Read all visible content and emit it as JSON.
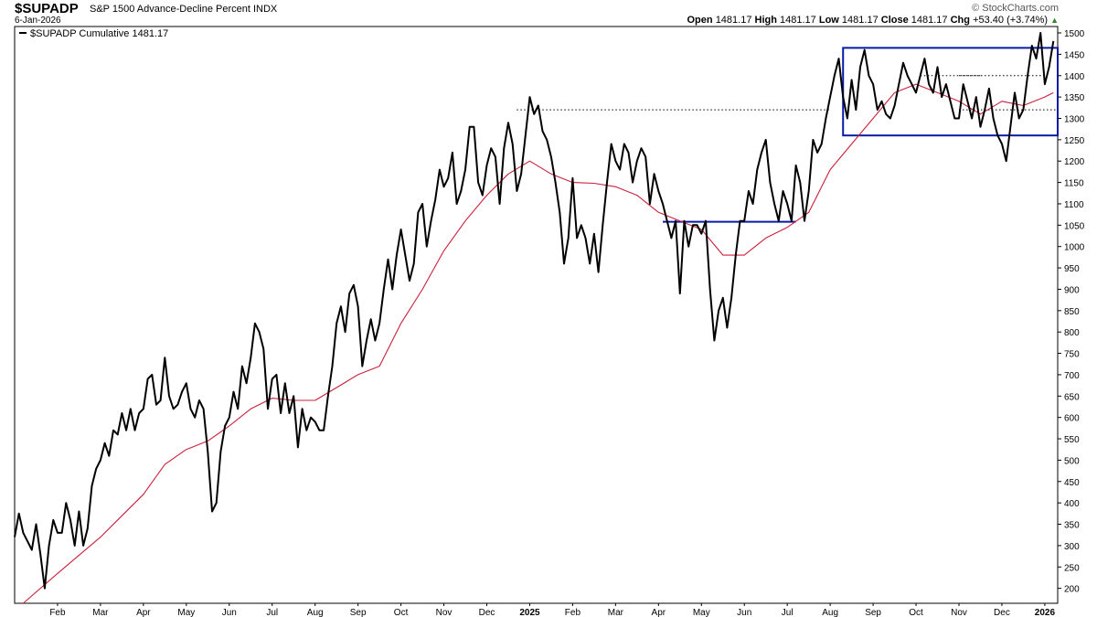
{
  "header": {
    "symbol": "$SUPADP",
    "description": "S&P 1500 Advance-Decline Percent INDX",
    "date": "6-Jan-2026",
    "source": "© StockCharts.com",
    "open_label": "Open",
    "open": "1481.17",
    "high_label": "High",
    "high": "1481.17",
    "low_label": "Low",
    "low": "1481.17",
    "close_label": "Close",
    "close": "1481.17",
    "chg_label": "Chg",
    "chg": "+53.40 (+3.74%)",
    "chg_arrow": "▲"
  },
  "chart_data": {
    "type": "line",
    "legend": "$SUPADP Cumulative 1481.17",
    "xlabels": [
      "Feb",
      "Mar",
      "Apr",
      "May",
      "Jun",
      "Jul",
      "Aug",
      "Sep",
      "Oct",
      "Nov",
      "Dec",
      "2025",
      "Feb",
      "Mar",
      "Apr",
      "May",
      "Jun",
      "Jul",
      "Aug",
      "Sep",
      "Oct",
      "Nov",
      "Dec",
      "2026"
    ],
    "xlabels_bold": [
      "2025",
      "2026"
    ],
    "yticks": [
      200,
      250,
      300,
      350,
      400,
      450,
      500,
      550,
      600,
      650,
      700,
      750,
      800,
      850,
      900,
      950,
      1000,
      1050,
      1100,
      1150,
      1200,
      1250,
      1300,
      1350,
      1400,
      1450,
      1500
    ],
    "ylim": [
      165,
      1515
    ],
    "xlim": [
      0,
      24.3
    ],
    "series": [
      {
        "name": "$SUPADP Cumulative",
        "color": "#000000",
        "points": [
          [
            0,
            320
          ],
          [
            0.1,
            375
          ],
          [
            0.2,
            330
          ],
          [
            0.3,
            310
          ],
          [
            0.4,
            290
          ],
          [
            0.5,
            350
          ],
          [
            0.6,
            280
          ],
          [
            0.7,
            200
          ],
          [
            0.8,
            300
          ],
          [
            0.9,
            360
          ],
          [
            1.0,
            330
          ],
          [
            1.1,
            330
          ],
          [
            1.2,
            400
          ],
          [
            1.3,
            360
          ],
          [
            1.4,
            300
          ],
          [
            1.5,
            380
          ],
          [
            1.6,
            300
          ],
          [
            1.7,
            340
          ],
          [
            1.8,
            440
          ],
          [
            1.9,
            480
          ],
          [
            2.0,
            500
          ],
          [
            2.1,
            540
          ],
          [
            2.2,
            510
          ],
          [
            2.3,
            570
          ],
          [
            2.4,
            560
          ],
          [
            2.5,
            610
          ],
          [
            2.6,
            570
          ],
          [
            2.7,
            620
          ],
          [
            2.8,
            570
          ],
          [
            2.9,
            610
          ],
          [
            3.0,
            620
          ],
          [
            3.1,
            690
          ],
          [
            3.2,
            700
          ],
          [
            3.3,
            630
          ],
          [
            3.4,
            640
          ],
          [
            3.5,
            740
          ],
          [
            3.6,
            650
          ],
          [
            3.7,
            620
          ],
          [
            3.8,
            630
          ],
          [
            3.9,
            660
          ],
          [
            4.0,
            680
          ],
          [
            4.1,
            620
          ],
          [
            4.2,
            600
          ],
          [
            4.3,
            640
          ],
          [
            4.4,
            620
          ],
          [
            4.5,
            520
          ],
          [
            4.6,
            380
          ],
          [
            4.7,
            400
          ],
          [
            4.8,
            520
          ],
          [
            4.9,
            580
          ],
          [
            5.0,
            600
          ],
          [
            5.1,
            660
          ],
          [
            5.2,
            620
          ],
          [
            5.3,
            720
          ],
          [
            5.4,
            680
          ],
          [
            5.5,
            740
          ],
          [
            5.6,
            820
          ],
          [
            5.7,
            800
          ],
          [
            5.8,
            760
          ],
          [
            5.9,
            620
          ],
          [
            6.0,
            690
          ],
          [
            6.1,
            700
          ],
          [
            6.2,
            610
          ],
          [
            6.3,
            680
          ],
          [
            6.4,
            610
          ],
          [
            6.5,
            650
          ],
          [
            6.6,
            530
          ],
          [
            6.7,
            620
          ],
          [
            6.8,
            570
          ],
          [
            6.9,
            600
          ],
          [
            7.0,
            590
          ],
          [
            7.1,
            570
          ],
          [
            7.2,
            570
          ],
          [
            7.3,
            650
          ],
          [
            7.4,
            720
          ],
          [
            7.5,
            820
          ],
          [
            7.6,
            860
          ],
          [
            7.7,
            800
          ],
          [
            7.8,
            890
          ],
          [
            7.9,
            910
          ],
          [
            8.0,
            860
          ],
          [
            8.1,
            720
          ],
          [
            8.2,
            780
          ],
          [
            8.3,
            830
          ],
          [
            8.4,
            780
          ],
          [
            8.5,
            820
          ],
          [
            8.6,
            900
          ],
          [
            8.7,
            970
          ],
          [
            8.8,
            900
          ],
          [
            8.9,
            980
          ],
          [
            9.0,
            1040
          ],
          [
            9.1,
            980
          ],
          [
            9.2,
            920
          ],
          [
            9.3,
            960
          ],
          [
            9.4,
            1080
          ],
          [
            9.5,
            1100
          ],
          [
            9.6,
            1000
          ],
          [
            9.7,
            1060
          ],
          [
            9.8,
            1110
          ],
          [
            9.9,
            1180
          ],
          [
            10.0,
            1140
          ],
          [
            10.1,
            1160
          ],
          [
            10.2,
            1220
          ],
          [
            10.3,
            1100
          ],
          [
            10.4,
            1130
          ],
          [
            10.5,
            1180
          ],
          [
            10.6,
            1280
          ],
          [
            10.7,
            1280
          ],
          [
            10.8,
            1150
          ],
          [
            10.9,
            1120
          ],
          [
            11.0,
            1190
          ],
          [
            11.1,
            1230
          ],
          [
            11.2,
            1210
          ],
          [
            11.3,
            1100
          ],
          [
            11.4,
            1230
          ],
          [
            11.5,
            1290
          ],
          [
            11.6,
            1240
          ],
          [
            11.7,
            1130
          ],
          [
            11.8,
            1170
          ],
          [
            11.9,
            1260
          ],
          [
            12.0,
            1350
          ],
          [
            12.1,
            1310
          ],
          [
            12.2,
            1330
          ],
          [
            12.3,
            1270
          ],
          [
            12.4,
            1250
          ],
          [
            12.5,
            1210
          ],
          [
            12.6,
            1150
          ],
          [
            12.7,
            1080
          ],
          [
            12.8,
            960
          ],
          [
            12.9,
            1020
          ],
          [
            13.0,
            1160
          ],
          [
            13.1,
            1020
          ],
          [
            13.2,
            1050
          ],
          [
            13.3,
            1020
          ],
          [
            13.4,
            960
          ],
          [
            13.5,
            1030
          ],
          [
            13.6,
            940
          ],
          [
            13.7,
            1050
          ],
          [
            13.8,
            1150
          ],
          [
            13.9,
            1240
          ],
          [
            14.0,
            1200
          ],
          [
            14.1,
            1180
          ],
          [
            14.2,
            1240
          ],
          [
            14.3,
            1220
          ],
          [
            14.4,
            1150
          ],
          [
            14.5,
            1200
          ],
          [
            14.6,
            1230
          ],
          [
            14.7,
            1210
          ],
          [
            14.8,
            1100
          ],
          [
            14.9,
            1170
          ],
          [
            15.0,
            1130
          ],
          [
            15.1,
            1100
          ],
          [
            15.2,
            1060
          ],
          [
            15.3,
            1020
          ],
          [
            15.4,
            1060
          ],
          [
            15.5,
            890
          ],
          [
            15.6,
            1060
          ],
          [
            15.7,
            1000
          ],
          [
            15.8,
            1050
          ],
          [
            15.9,
            1050
          ],
          [
            16.0,
            1030
          ],
          [
            16.1,
            1060
          ],
          [
            16.2,
            900
          ],
          [
            16.3,
            780
          ],
          [
            16.4,
            850
          ],
          [
            16.5,
            880
          ],
          [
            16.6,
            810
          ],
          [
            16.7,
            880
          ],
          [
            16.8,
            980
          ],
          [
            16.9,
            1060
          ],
          [
            17.0,
            1060
          ],
          [
            17.1,
            1130
          ],
          [
            17.2,
            1100
          ],
          [
            17.3,
            1180
          ],
          [
            17.4,
            1220
          ],
          [
            17.5,
            1250
          ],
          [
            17.6,
            1150
          ],
          [
            17.7,
            1100
          ],
          [
            17.8,
            1060
          ],
          [
            17.9,
            1130
          ],
          [
            18.0,
            1100
          ],
          [
            18.1,
            1060
          ],
          [
            18.2,
            1190
          ],
          [
            18.3,
            1150
          ],
          [
            18.4,
            1060
          ],
          [
            18.5,
            1130
          ],
          [
            18.6,
            1250
          ],
          [
            18.7,
            1220
          ],
          [
            18.8,
            1240
          ],
          [
            18.9,
            1300
          ],
          [
            19.0,
            1350
          ],
          [
            19.1,
            1400
          ],
          [
            19.2,
            1440
          ],
          [
            19.3,
            1350
          ],
          [
            19.4,
            1300
          ],
          [
            19.5,
            1390
          ],
          [
            19.6,
            1320
          ],
          [
            19.7,
            1420
          ],
          [
            19.8,
            1460
          ],
          [
            19.9,
            1400
          ],
          [
            20.0,
            1380
          ],
          [
            20.1,
            1320
          ],
          [
            20.2,
            1340
          ],
          [
            20.3,
            1310
          ],
          [
            20.4,
            1300
          ],
          [
            20.5,
            1330
          ],
          [
            20.6,
            1380
          ],
          [
            20.7,
            1430
          ],
          [
            20.8,
            1400
          ],
          [
            20.9,
            1380
          ],
          [
            21.0,
            1360
          ],
          [
            21.1,
            1400
          ],
          [
            21.2,
            1440
          ],
          [
            21.3,
            1380
          ],
          [
            21.4,
            1360
          ],
          [
            21.5,
            1420
          ],
          [
            21.6,
            1350
          ],
          [
            21.7,
            1380
          ],
          [
            21.8,
            1340
          ],
          [
            21.9,
            1300
          ],
          [
            22.0,
            1300
          ],
          [
            22.1,
            1380
          ],
          [
            22.2,
            1340
          ],
          [
            22.3,
            1300
          ],
          [
            22.4,
            1350
          ],
          [
            22.5,
            1280
          ],
          [
            22.6,
            1320
          ],
          [
            22.7,
            1370
          ],
          [
            22.8,
            1300
          ],
          [
            22.9,
            1260
          ],
          [
            23.0,
            1240
          ],
          [
            23.1,
            1200
          ],
          [
            23.2,
            1280
          ],
          [
            23.3,
            1360
          ],
          [
            23.4,
            1300
          ],
          [
            23.5,
            1320
          ],
          [
            23.6,
            1400
          ],
          [
            23.7,
            1470
          ],
          [
            23.8,
            1440
          ],
          [
            23.9,
            1500
          ],
          [
            24.0,
            1380
          ],
          [
            24.1,
            1420
          ],
          [
            24.2,
            1481
          ]
        ]
      },
      {
        "name": "Moving Average",
        "color": "#cc1f3a",
        "points": [
          [
            0.2,
            165
          ],
          [
            1.0,
            235
          ],
          [
            2.0,
            320
          ],
          [
            3.0,
            420
          ],
          [
            3.5,
            490
          ],
          [
            4.0,
            525
          ],
          [
            4.5,
            545
          ],
          [
            5.0,
            580
          ],
          [
            5.5,
            620
          ],
          [
            6.0,
            645
          ],
          [
            6.5,
            640
          ],
          [
            7.0,
            640
          ],
          [
            7.5,
            670
          ],
          [
            8.0,
            700
          ],
          [
            8.5,
            720
          ],
          [
            9.0,
            820
          ],
          [
            9.5,
            900
          ],
          [
            10.0,
            990
          ],
          [
            10.5,
            1060
          ],
          [
            11.0,
            1120
          ],
          [
            11.5,
            1170
          ],
          [
            12.0,
            1200
          ],
          [
            12.5,
            1170
          ],
          [
            13.0,
            1150
          ],
          [
            13.5,
            1148
          ],
          [
            14.0,
            1140
          ],
          [
            14.5,
            1120
          ],
          [
            15.0,
            1080
          ],
          [
            15.5,
            1060
          ],
          [
            16.0,
            1040
          ],
          [
            16.5,
            980
          ],
          [
            17.0,
            980
          ],
          [
            17.5,
            1020
          ],
          [
            18.0,
            1045
          ],
          [
            18.5,
            1080
          ],
          [
            19.0,
            1180
          ],
          [
            19.5,
            1240
          ],
          [
            20.0,
            1300
          ],
          [
            20.5,
            1360
          ],
          [
            21.0,
            1380
          ],
          [
            21.5,
            1360
          ],
          [
            22.0,
            1340
          ],
          [
            22.5,
            1310
          ],
          [
            23.0,
            1340
          ],
          [
            23.5,
            1330
          ],
          [
            24.0,
            1350
          ],
          [
            24.2,
            1360
          ]
        ]
      }
    ],
    "annotations": {
      "dotted_lines": [
        {
          "x1": 11.7,
          "x2": 19.0,
          "y": 1320
        },
        {
          "x1": 22.0,
          "x2": 24.3,
          "y": 1320
        },
        {
          "x1": 22.0,
          "x2": 24.0,
          "y": 1400
        },
        {
          "x1": 21.1,
          "x2": 22.5,
          "y": 1400
        }
      ],
      "solid_line": {
        "x1": 15.1,
        "x2": 18.2,
        "y": 1058
      },
      "box": {
        "x1": 19.3,
        "x2": 24.3,
        "y1": 1260,
        "y2": 1465
      }
    }
  }
}
